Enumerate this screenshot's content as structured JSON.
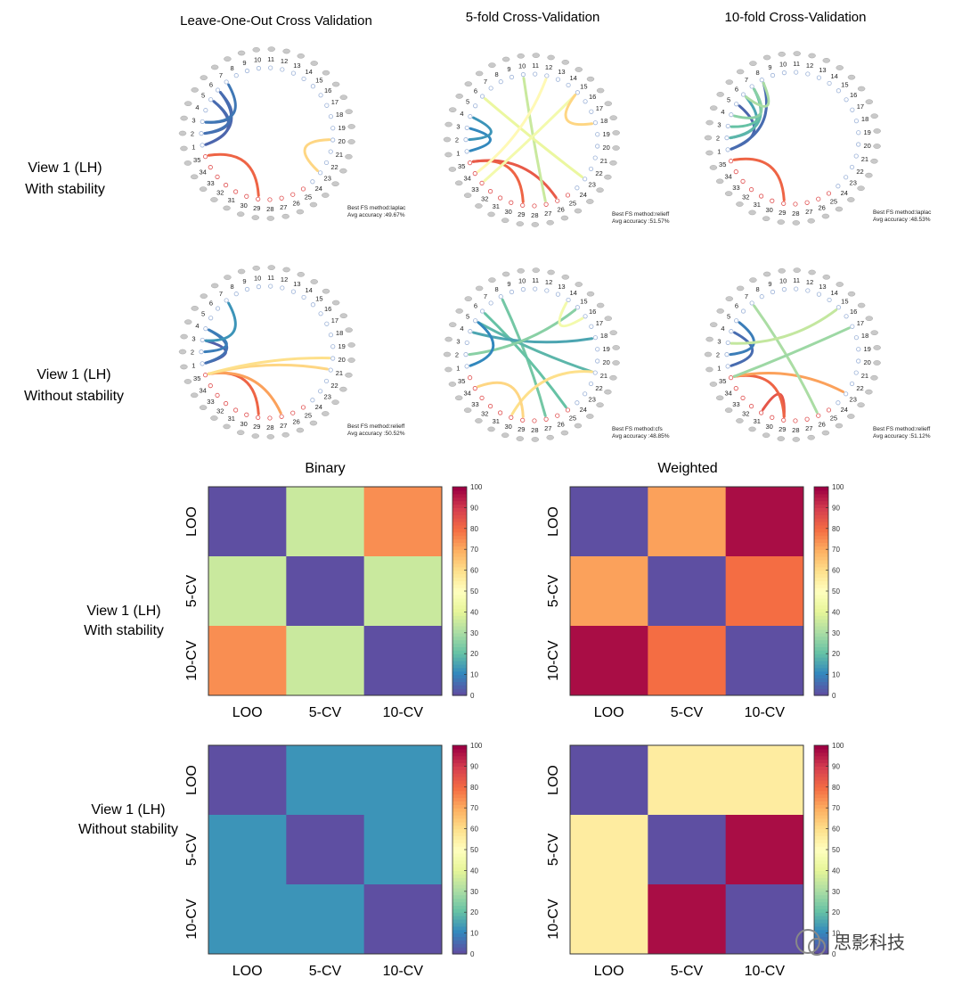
{
  "colors": {
    "scale": [
      "#5e4fa2",
      "#3288bd",
      "#66c2a5",
      "#abdda4",
      "#e6f598",
      "#ffffbf",
      "#fee08b",
      "#fdae61",
      "#f46d43",
      "#d53e4f",
      "#9e0142"
    ]
  },
  "sections": {
    "col_titles": [
      "Leave-One-Out Cross Validation",
      "5-fold Cross-Validation",
      "10-fold Cross-Validation"
    ],
    "row1_label": [
      "View 1 (LH)",
      "With stability"
    ],
    "row2_label": [
      "View 1 (LH)",
      "Without stability"
    ],
    "row3_label": [
      "View 1 (LH)",
      "With stability"
    ],
    "row4_label": [
      "View 1 (LH)",
      "Without stability"
    ],
    "heat_titles": [
      "Binary",
      "Weighted"
    ]
  },
  "circular": {
    "ring_labels": [
      "1",
      "2",
      "3",
      "4",
      "5",
      "6",
      "7",
      "8",
      "9",
      "10",
      "11",
      "12",
      "13",
      "14",
      "15",
      "16",
      "17",
      "18",
      "19",
      "20",
      "21",
      "22",
      "23",
      "24",
      "25",
      "26",
      "27",
      "28",
      "29",
      "30",
      "31",
      "32",
      "33",
      "34",
      "35"
    ],
    "panels": [
      {
        "id": "r1c1",
        "fs_method": "Best FS method:laplac",
        "avg_acc": "Avg accuracy :49.67%",
        "links": [
          [
            29,
            35,
            0.82
          ],
          [
            20,
            23,
            0.62
          ],
          [
            1,
            5,
            0.03
          ],
          [
            1,
            6,
            0.04
          ],
          [
            2,
            5,
            0.05
          ],
          [
            2,
            6,
            0.06
          ],
          [
            3,
            6,
            0.05
          ],
          [
            3,
            7,
            0.07
          ]
        ]
      },
      {
        "id": "r1c2",
        "fs_method": "Best FS method:relieff",
        "avg_acc": "Avg accuracy :51.57%",
        "links": [
          [
            29,
            35,
            0.82
          ],
          [
            26,
            35,
            0.84
          ],
          [
            27,
            10,
            0.35
          ],
          [
            23,
            6,
            0.42
          ],
          [
            33,
            15,
            0.45
          ],
          [
            34,
            12,
            0.52
          ],
          [
            18,
            15,
            0.62
          ],
          [
            1,
            3,
            0.1
          ],
          [
            2,
            4,
            0.12
          ]
        ]
      },
      {
        "id": "r1c3",
        "fs_method": "Best FS method:laplac",
        "avg_acc": "Avg accuracy :48.53%",
        "links": [
          [
            29,
            35,
            0.82
          ],
          [
            1,
            5,
            0.04
          ],
          [
            1,
            8,
            0.05
          ],
          [
            2,
            6,
            0.15
          ],
          [
            2,
            7,
            0.18
          ],
          [
            3,
            7,
            0.2
          ],
          [
            4,
            7,
            0.25
          ],
          [
            6,
            8,
            0.3
          ]
        ]
      }
    ],
    "panels2": [
      {
        "id": "r2c1",
        "fs_method": "Best FS method:relieff",
        "avg_acc": "Avg accuracy :50.52%",
        "links": [
          [
            29,
            35,
            0.82
          ],
          [
            27,
            35,
            0.72
          ],
          [
            21,
            35,
            0.62
          ],
          [
            20,
            35,
            0.6
          ],
          [
            1,
            3,
            0.03
          ],
          [
            1,
            4,
            0.06
          ],
          [
            2,
            4,
            0.08
          ],
          [
            3,
            7,
            0.12
          ]
        ]
      },
      {
        "id": "r2c2",
        "fs_method": "Best FS method:cfs",
        "avg_acc": "Avg accuracy :48.85%",
        "links": [
          [
            27,
            8,
            0.22
          ],
          [
            25,
            6,
            0.2
          ],
          [
            21,
            5,
            0.18
          ],
          [
            30,
            21,
            0.6
          ],
          [
            29,
            34,
            0.62
          ],
          [
            4,
            18,
            0.15
          ],
          [
            2,
            15,
            0.25
          ],
          [
            14,
            16,
            0.45
          ],
          [
            1,
            5,
            0.1
          ]
        ]
      },
      {
        "id": "r2c3",
        "fs_method": "Best FS method:relieff",
        "avg_acc": "Avg accuracy :51.12%",
        "links": [
          [
            31,
            29,
            0.85
          ],
          [
            29,
            35,
            0.82
          ],
          [
            23,
            35,
            0.72
          ],
          [
            26,
            7,
            0.3
          ],
          [
            1,
            4,
            0.05
          ],
          [
            2,
            5,
            0.08
          ],
          [
            35,
            17,
            0.28
          ],
          [
            3,
            15,
            0.34
          ]
        ]
      }
    ]
  },
  "chart_data": [
    {
      "type": "heatmap",
      "title": "Binary",
      "x_categories": [
        "LOO",
        "5-CV",
        "10-CV"
      ],
      "y_categories": [
        "LOO",
        "5-CV",
        "10-CV"
      ],
      "values": [
        [
          0,
          35,
          75
        ],
        [
          35,
          0,
          35
        ],
        [
          75,
          35,
          0
        ]
      ],
      "colorbar_range": [
        0,
        100
      ],
      "colorbar_ticks": [
        "0",
        "10",
        "20",
        "30",
        "40",
        "50",
        "60",
        "70",
        "80",
        "90",
        "100"
      ]
    },
    {
      "type": "heatmap",
      "title": "Weighted",
      "x_categories": [
        "LOO",
        "5-CV",
        "10-CV"
      ],
      "y_categories": [
        "LOO",
        "5-CV",
        "10-CV"
      ],
      "values": [
        [
          0,
          72,
          98
        ],
        [
          72,
          0,
          80
        ],
        [
          98,
          80,
          0
        ]
      ],
      "colorbar_range": [
        0,
        100
      ],
      "colorbar_ticks": [
        "0",
        "10",
        "20",
        "30",
        "40",
        "50",
        "60",
        "70",
        "80",
        "90",
        "100"
      ]
    },
    {
      "type": "heatmap",
      "title": "",
      "x_categories": [
        "LOO",
        "5-CV",
        "10-CV"
      ],
      "y_categories": [
        "LOO",
        "5-CV",
        "10-CV"
      ],
      "values": [
        [
          0,
          12,
          12
        ],
        [
          12,
          0,
          12
        ],
        [
          12,
          12,
          0
        ]
      ],
      "colorbar_range": [
        0,
        100
      ],
      "colorbar_ticks": [
        "0",
        "10",
        "20",
        "30",
        "40",
        "50",
        "60",
        "70",
        "80",
        "90",
        "100"
      ]
    },
    {
      "type": "heatmap",
      "title": "",
      "x_categories": [
        "LOO",
        "5-CV",
        "10-CV"
      ],
      "y_categories": [
        "LOO",
        "5-CV",
        "10-CV"
      ],
      "values": [
        [
          0,
          56,
          56
        ],
        [
          56,
          0,
          98
        ],
        [
          56,
          98,
          0
        ]
      ],
      "colorbar_range": [
        0,
        100
      ],
      "colorbar_ticks": [
        "0",
        "10",
        "20",
        "30",
        "40",
        "50",
        "60",
        "70",
        "80",
        "90",
        "100"
      ]
    }
  ],
  "watermark": "思影科技"
}
